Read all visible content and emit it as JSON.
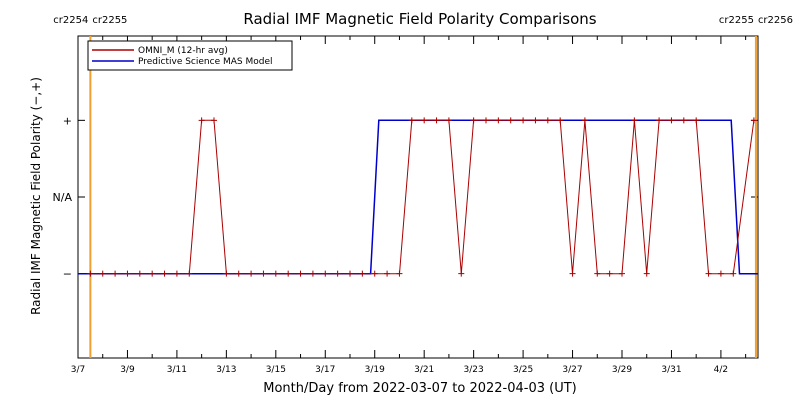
{
  "chart_data": {
    "type": "line",
    "title": "Radial IMF Magnetic Field Polarity Comparisons",
    "xlabel": "Month/Day from 2022-03-07 to 2022-04-03 (UT)",
    "ylabel": "Radial IMF Magnetic Field Polarity (−,+)",
    "x_ticks": [
      "3/7",
      "3/9",
      "3/11",
      "3/13",
      "3/15",
      "3/17",
      "3/19",
      "3/21",
      "3/23",
      "3/25",
      "3/27",
      "3/29",
      "3/31",
      "4/2"
    ],
    "y_categories": [
      {
        "label": "−",
        "value": -1
      },
      {
        "label": "N/A",
        "value": 0
      },
      {
        "label": "+",
        "value": 1
      }
    ],
    "xlim": [
      "2022-03-07",
      "2022-04-03T12:00"
    ],
    "ylim": [
      -2.1,
      2.1
    ],
    "carrington_markers": [
      {
        "date": "2022-03-07T12:00",
        "label_left": "cr2254",
        "label_right": "cr2255"
      },
      {
        "date": "2022-04-03T10:00",
        "label_left": "cr2255",
        "label_right": "cr2256"
      }
    ],
    "colors": {
      "omni": "#aa0000",
      "model": "#0000cc",
      "marker": "#f0a030",
      "axis": "#000000"
    },
    "series": [
      {
        "name": "OMNI_M (12-hr avg)",
        "marker": "+",
        "points": [
          [
            "2022-03-07T12:00",
            -1
          ],
          [
            "2022-03-08",
            -1
          ],
          [
            "2022-03-08T12:00",
            -1
          ],
          [
            "2022-03-09",
            -1
          ],
          [
            "2022-03-09T12:00",
            -1
          ],
          [
            "2022-03-10",
            -1
          ],
          [
            "2022-03-10T12:00",
            -1
          ],
          [
            "2022-03-11",
            -1
          ],
          [
            "2022-03-11T12:00",
            -1
          ],
          [
            "2022-03-12",
            1
          ],
          [
            "2022-03-12T12:00",
            1
          ],
          [
            "2022-03-13",
            -1
          ],
          [
            "2022-03-13T12:00",
            -1
          ],
          [
            "2022-03-14",
            -1
          ],
          [
            "2022-03-14T12:00",
            -1
          ],
          [
            "2022-03-15",
            -1
          ],
          [
            "2022-03-15T12:00",
            -1
          ],
          [
            "2022-03-16",
            -1
          ],
          [
            "2022-03-16T12:00",
            -1
          ],
          [
            "2022-03-17",
            -1
          ],
          [
            "2022-03-17T12:00",
            -1
          ],
          [
            "2022-03-18",
            -1
          ],
          [
            "2022-03-18T12:00",
            -1
          ],
          [
            "2022-03-19",
            -1
          ],
          [
            "2022-03-19T12:00",
            -1
          ],
          [
            "2022-03-20",
            -1
          ],
          [
            "2022-03-20T12:00",
            1
          ],
          [
            "2022-03-21",
            1
          ],
          [
            "2022-03-21T12:00",
            1
          ],
          [
            "2022-03-22",
            1
          ],
          [
            "2022-03-22T12:00",
            -1
          ],
          [
            "2022-03-23",
            1
          ],
          [
            "2022-03-23T12:00",
            1
          ],
          [
            "2022-03-24",
            1
          ],
          [
            "2022-03-24T12:00",
            1
          ],
          [
            "2022-03-25",
            1
          ],
          [
            "2022-03-25T12:00",
            1
          ],
          [
            "2022-03-26",
            1
          ],
          [
            "2022-03-26T12:00",
            1
          ],
          [
            "2022-03-27",
            -1
          ],
          [
            "2022-03-27T12:00",
            1
          ],
          [
            "2022-03-28",
            -1
          ],
          [
            "2022-03-28T12:00",
            -1
          ],
          [
            "2022-03-29",
            -1
          ],
          [
            "2022-03-29T12:00",
            1
          ],
          [
            "2022-03-30",
            -1
          ],
          [
            "2022-03-30T12:00",
            1
          ],
          [
            "2022-03-31",
            1
          ],
          [
            "2022-03-31T12:00",
            1
          ],
          [
            "2022-04-01",
            1
          ],
          [
            "2022-04-01T12:00",
            -1
          ],
          [
            "2022-04-02",
            -1
          ],
          [
            "2022-04-02T12:00",
            -1
          ],
          [
            "2022-04-03T08:00",
            1
          ]
        ]
      },
      {
        "name": "Predictive Science MAS Model",
        "marker": "none",
        "points": [
          [
            "2022-03-07",
            -1
          ],
          [
            "2022-03-18T20:00",
            -1
          ],
          [
            "2022-03-19T04:00",
            1
          ],
          [
            "2022-04-02T10:00",
            1
          ],
          [
            "2022-04-02T18:00",
            -1
          ],
          [
            "2022-04-03T12:00",
            -1
          ]
        ]
      }
    ]
  }
}
